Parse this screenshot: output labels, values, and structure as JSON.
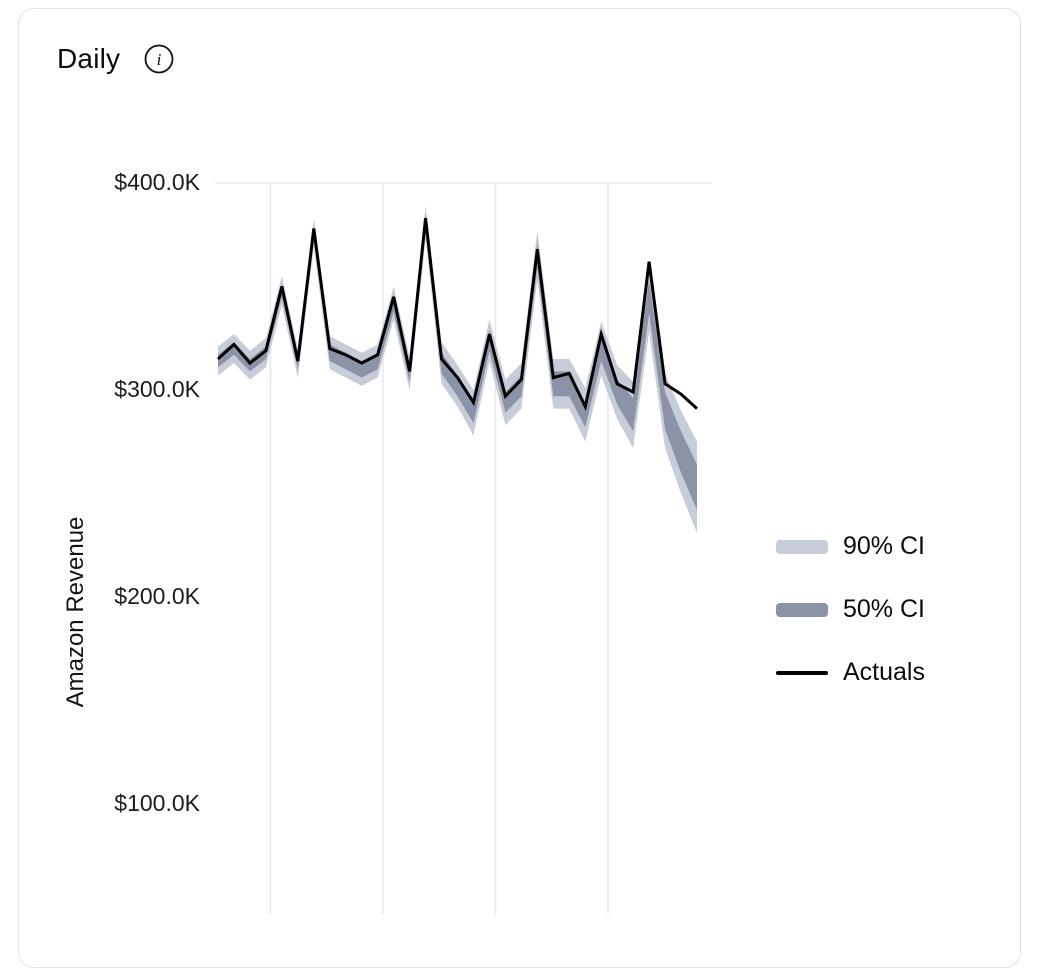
{
  "header": {
    "title": "Daily",
    "info_glyph": "i"
  },
  "y_axis": {
    "title": "Amazon Revenue",
    "ticks": [
      {
        "label": "$400.0K",
        "value": 400
      },
      {
        "label": "$300.0K",
        "value": 300
      },
      {
        "label": "$200.0K",
        "value": 200
      },
      {
        "label": "$100.0K",
        "value": 100
      }
    ]
  },
  "legend": {
    "items": [
      {
        "label": "90% CI",
        "type": "band",
        "color": "#c7ccd9"
      },
      {
        "label": "50% CI",
        "type": "band",
        "color": "#8c93a6"
      },
      {
        "label": "Actuals",
        "type": "line",
        "color": "#000000"
      }
    ]
  },
  "theme": {
    "grid_color": "#e8e8e8",
    "card_border": "#e4e4e7",
    "background": "#ffffff"
  },
  "chart_data": {
    "type": "line",
    "title": "Daily",
    "ylabel": "Amazon Revenue",
    "y_unit": "USD (thousands)",
    "x_unit": "day index (x tick labels not visible in view)",
    "ylim_visible": [
      60,
      430
    ],
    "grid": "vertical weekly gridlines",
    "legend_position": "right",
    "x": [
      0,
      1,
      2,
      3,
      4,
      5,
      6,
      7,
      8,
      9,
      10,
      11,
      12,
      13,
      14,
      15,
      16,
      17,
      18,
      19,
      20,
      21,
      22,
      23,
      24,
      25,
      26,
      27,
      28,
      29,
      30
    ],
    "series": [
      {
        "name": "90% CI",
        "kind": "band",
        "lower": [
          307,
          313,
          305,
          311,
          341,
          306,
          369,
          310,
          306,
          302,
          306,
          334,
          300,
          373,
          303,
          292,
          278,
          314,
          283,
          291,
          353,
          291,
          291,
          275,
          307,
          286,
          272,
          328,
          272,
          250,
          231
        ],
        "upper": [
          321,
          327,
          319,
          325,
          355,
          320,
          383,
          326,
          322,
          318,
          322,
          350,
          316,
          389,
          323,
          312,
          300,
          334,
          305,
          313,
          377,
          315,
          315,
          301,
          333,
          312,
          304,
          362,
          308,
          290,
          275
        ]
      },
      {
        "name": "50% CI",
        "kind": "band",
        "lower": [
          311,
          317,
          309,
          315,
          345,
          310,
          373,
          314,
          310,
          306,
          310,
          338,
          304,
          377,
          308,
          297,
          284,
          319,
          289,
          297,
          359,
          297,
          297,
          282,
          314,
          293,
          280,
          337,
          281,
          260,
          242
        ],
        "upper": [
          317,
          323,
          315,
          321,
          351,
          316,
          379,
          322,
          318,
          314,
          318,
          346,
          312,
          385,
          318,
          307,
          294,
          329,
          299,
          307,
          371,
          309,
          309,
          294,
          326,
          305,
          296,
          353,
          299,
          280,
          264
        ]
      },
      {
        "name": "Actuals",
        "kind": "line",
        "values": [
          315,
          322,
          313,
          319,
          350,
          314,
          378,
          320,
          317,
          313,
          317,
          345,
          309,
          383,
          315,
          306,
          294,
          327,
          297,
          305,
          368,
          306,
          308,
          292,
          327,
          303,
          299,
          362,
          303,
          298,
          291
        ]
      }
    ]
  }
}
